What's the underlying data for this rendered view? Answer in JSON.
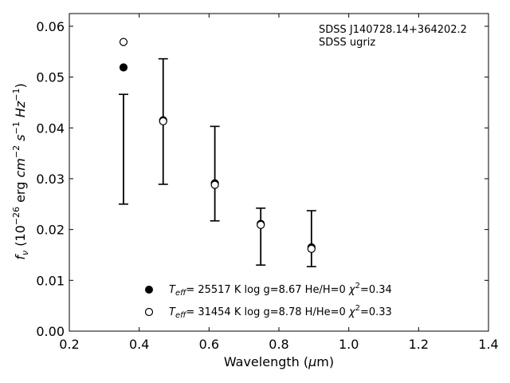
{
  "chart_data": {
    "type": "scatter",
    "title": "",
    "xlabel": "Wavelength (μm)",
    "ylabel": "f_ν (10^-26 erg cm^-2 s^-1 Hz^-1)",
    "xlim": [
      0.2,
      1.4
    ],
    "ylim": [
      0.0,
      0.0625
    ],
    "xticks": [
      0.2,
      0.4,
      0.6,
      0.8,
      1.0,
      1.2,
      1.4
    ],
    "xtick_labels": [
      "0.2",
      "0.4",
      "0.6",
      "0.8",
      "1.0",
      "1.2",
      "1.4"
    ],
    "yticks": [
      0.0,
      0.01,
      0.02,
      0.03,
      0.04,
      0.05,
      0.06
    ],
    "ytick_labels": [
      "0.00",
      "0.01",
      "0.02",
      "0.03",
      "0.04",
      "0.05",
      "0.06"
    ],
    "grid": false,
    "legend_position": "bottom-center",
    "annotations": [
      "SDSS J140728.14+364202.2",
      "SDSS ugriz"
    ],
    "observations": {
      "x": [
        0.3551,
        0.4686,
        0.6166,
        0.748,
        0.8932
      ],
      "err_low": [
        0.025,
        0.0289,
        0.0217,
        0.013,
        0.0127
      ],
      "err_high": [
        0.0466,
        0.0536,
        0.0403,
        0.0242,
        0.0237
      ]
    },
    "series": [
      {
        "name": "T_eff= 25517 K  log g=8.67  He/H=0  χ²=0.34",
        "marker": "filled-circle",
        "x": [
          0.3551,
          0.4686,
          0.6166,
          0.748,
          0.8932
        ],
        "y": [
          0.0519,
          0.0415,
          0.0291,
          0.0211,
          0.0165
        ]
      },
      {
        "name": "T_eff= 31454 K  log g=8.78  H/He=0  χ²=0.33",
        "marker": "open-circle",
        "x": [
          0.3551,
          0.4686,
          0.6166,
          0.748,
          0.8932
        ],
        "y": [
          0.0569,
          0.0413,
          0.0288,
          0.0209,
          0.0162
        ]
      }
    ]
  }
}
